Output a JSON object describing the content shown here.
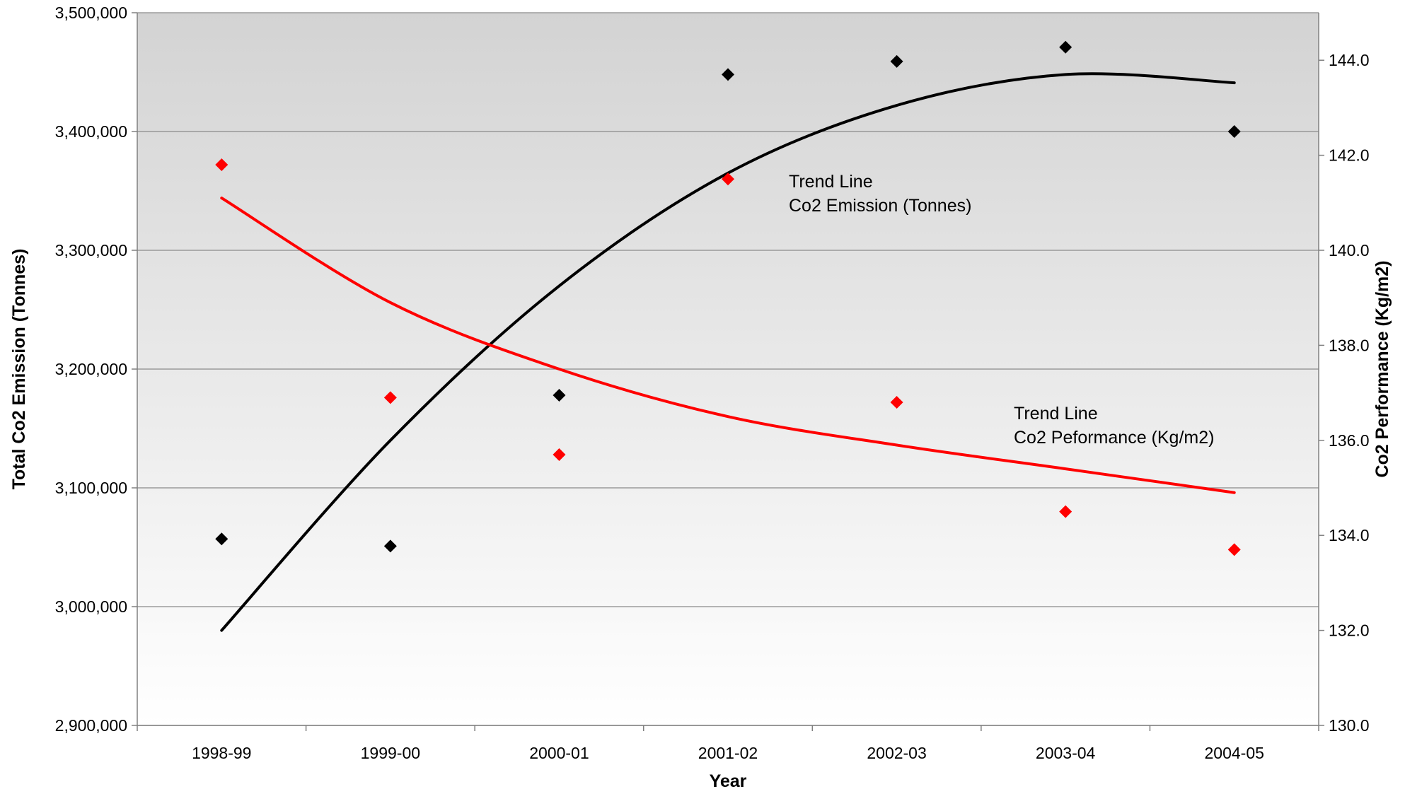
{
  "chart_data": {
    "type": "scatter",
    "title": "",
    "xlabel": "Year",
    "ylabel": "Total Co2 Emission (Tonnes)",
    "y2label": "Co2 Performance (Kg/m2)",
    "categories": [
      "1998-99",
      "1999-00",
      "2000-01",
      "2001-02",
      "2002-03",
      "2003-04",
      "2004-05"
    ],
    "ylim": [
      2900000,
      3500000
    ],
    "y2lim": [
      130.0,
      145.0
    ],
    "y_ticks": [
      "2,900,000",
      "3,000,000",
      "3,100,000",
      "3,200,000",
      "3,300,000",
      "3,400,000",
      "3,500,000"
    ],
    "y2_ticks": [
      "130.0",
      "132.0",
      "134.0",
      "136.0",
      "138.0",
      "140.0",
      "142.0",
      "144.0"
    ],
    "grid": true,
    "legend": "none",
    "series": [
      {
        "axis": "left",
        "color": "#000000",
        "marker": "diamond",
        "values": [
          3057000,
          3051000,
          3178000,
          3448000,
          3459000,
          3471000,
          3400000
        ]
      },
      {
        "axis": "right",
        "color": "#ff0000",
        "marker": "diamond",
        "values": [
          141.8,
          136.9,
          135.7,
          141.5,
          136.8,
          134.5,
          133.7
        ]
      }
    ],
    "trendlines": [
      {
        "axis": "left",
        "color": "#000000",
        "kind": "polynomial",
        "values": [
          2980000,
          3140000,
          3270000,
          3365000,
          3422000,
          3448000,
          3441000
        ]
      },
      {
        "axis": "right",
        "color": "#ff0000",
        "kind": "logarithmic",
        "values": [
          141.1,
          138.9,
          137.5,
          136.5,
          135.9,
          135.4,
          134.9
        ]
      }
    ],
    "annotations": [
      {
        "lines": [
          "Trend Line",
          "Co2 Emission (Tonnes)"
        ]
      },
      {
        "lines": [
          "Trend Line",
          "Co2 Peformance (Kg/m2)"
        ]
      }
    ]
  }
}
